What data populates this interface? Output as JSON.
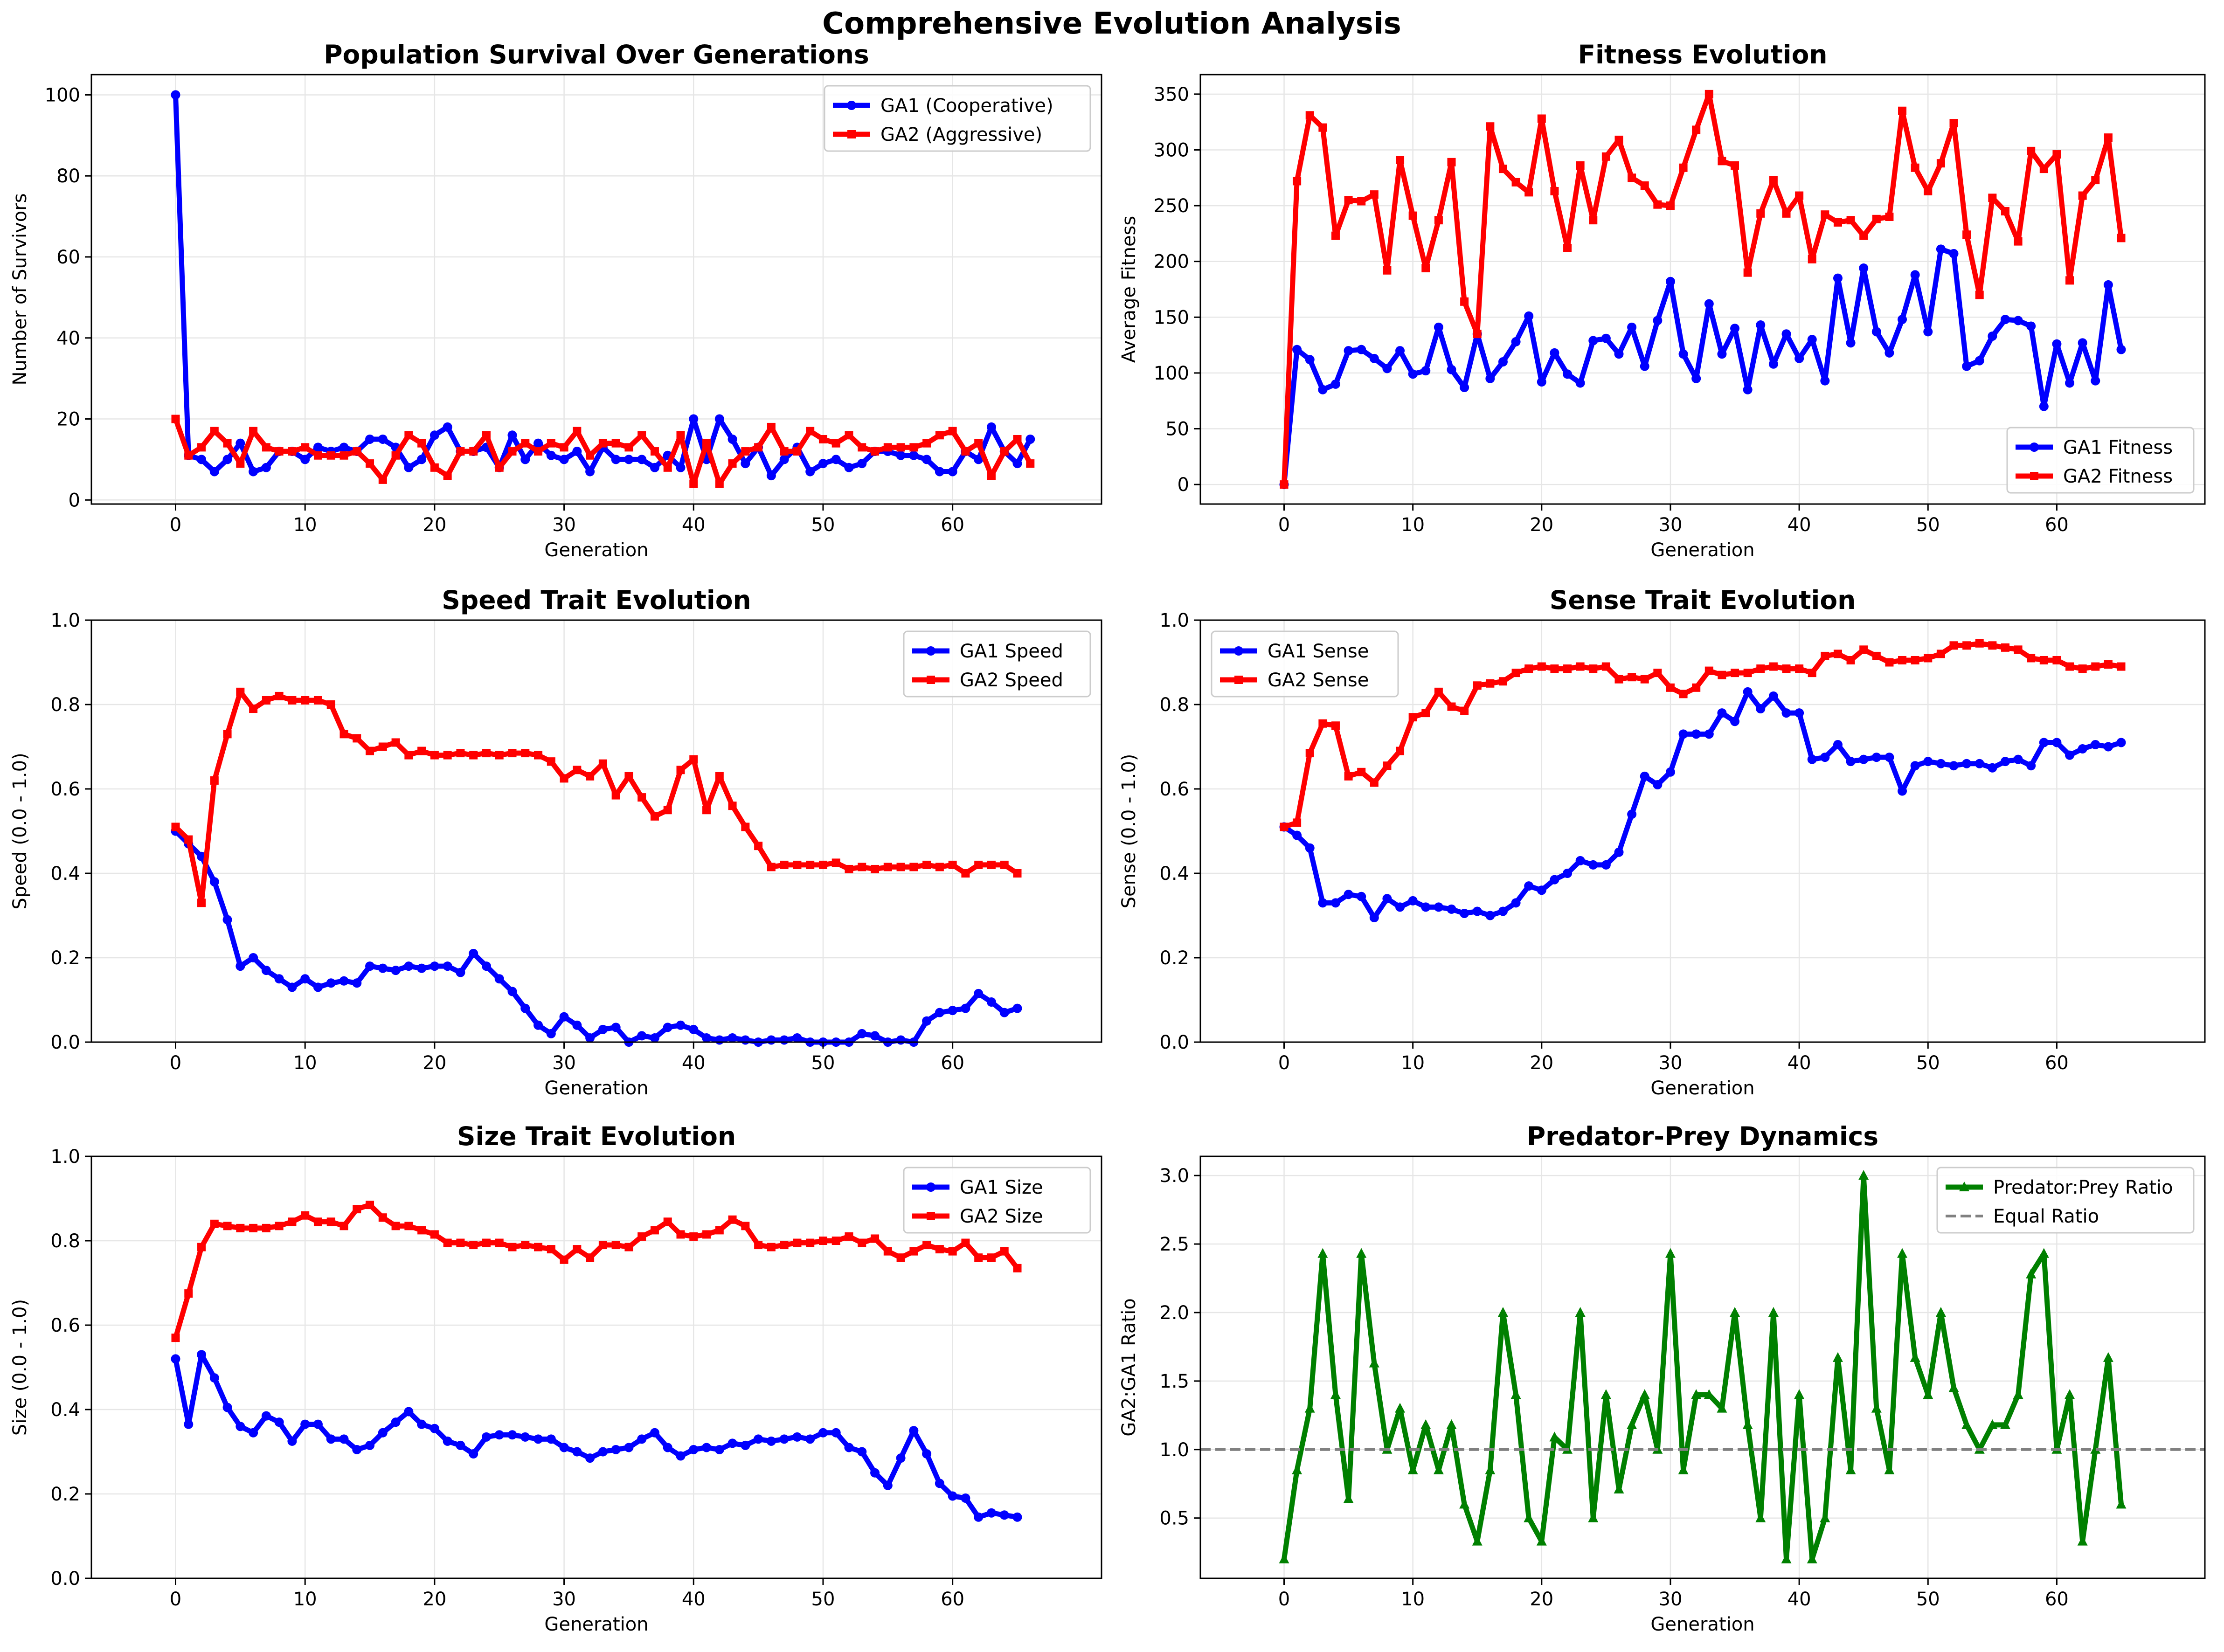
{
  "suptitle": "Comprehensive Evolution Analysis",
  "chart_data": [
    {
      "type": "line",
      "title": "Population Survival Over Generations",
      "xlabel": "Generation",
      "ylabel": "Number of Survivors",
      "xlim": [
        -6.5,
        71.5
      ],
      "ylim": [
        -1,
        105
      ],
      "xticks": [
        0,
        10,
        20,
        30,
        40,
        50,
        60
      ],
      "yticks": [
        0,
        20,
        40,
        60,
        80,
        100
      ],
      "ytick_labels": [
        "0",
        "20",
        "40",
        "60",
        "80",
        "100"
      ],
      "grid": true,
      "legend_position": "top-right",
      "series": [
        {
          "name": "GA1 (Cooperative)",
          "color": "#0000ff",
          "marker": "circle",
          "values": [
            100,
            11,
            10,
            7,
            10,
            14,
            7,
            8,
            12,
            12,
            10,
            13,
            12,
            13,
            12,
            15,
            15,
            13,
            8,
            10,
            16,
            18,
            12,
            12,
            13,
            8,
            16,
            10,
            14,
            11,
            10,
            12,
            7,
            13,
            10,
            10,
            10,
            8,
            11,
            8,
            20,
            10,
            20,
            15,
            9,
            13,
            6,
            10,
            13,
            7,
            9,
            10,
            8,
            9,
            12,
            12,
            11,
            11,
            10,
            7,
            7,
            12,
            10,
            18,
            12,
            9,
            15
          ]
        },
        {
          "name": "GA2 (Aggressive)",
          "color": "#ff0000",
          "marker": "square",
          "values": [
            20,
            11,
            13,
            17,
            14,
            9,
            17,
            13,
            12,
            12,
            13,
            11,
            11,
            11,
            12,
            9,
            5,
            11,
            16,
            14,
            8,
            6,
            12,
            12,
            16,
            8,
            12,
            14,
            12,
            14,
            13,
            17,
            11,
            14,
            14,
            13,
            16,
            12,
            8,
            16,
            4,
            14,
            4,
            9,
            12,
            13,
            18,
            12,
            12,
            17,
            15,
            14,
            16,
            13,
            12,
            13,
            13,
            13,
            14,
            16,
            17,
            12,
            14,
            6,
            12,
            15,
            9
          ]
        }
      ]
    },
    {
      "type": "line",
      "title": "Fitness Evolution",
      "xlabel": "Generation",
      "ylabel": "Average Fitness",
      "xlim": [
        -6.5,
        71.5
      ],
      "ylim": [
        -17.5,
        367.5
      ],
      "xticks": [
        0,
        10,
        20,
        30,
        40,
        50,
        60
      ],
      "yticks": [
        0,
        50,
        100,
        150,
        200,
        250,
        300,
        350
      ],
      "ytick_labels": [
        "0",
        "50",
        "100",
        "150",
        "200",
        "250",
        "300",
        "350"
      ],
      "grid": true,
      "legend_position": "bottom-right",
      "series": [
        {
          "name": "GA1 Fitness",
          "color": "#0000ff",
          "marker": "circle",
          "values": [
            0,
            121,
            112,
            85,
            90,
            120,
            121,
            113,
            104,
            120,
            99,
            102,
            141,
            103,
            87,
            135,
            95,
            110,
            128,
            151,
            92,
            118,
            99,
            91,
            129,
            131,
            117,
            141,
            106,
            147,
            182,
            117,
            95,
            162,
            117,
            140,
            85,
            143,
            108,
            135,
            113,
            130,
            93,
            185,
            127,
            194,
            137,
            118,
            148,
            188,
            137,
            211,
            207,
            106,
            111,
            133,
            148,
            147,
            142,
            70,
            126,
            91,
            127,
            93,
            179,
            121
          ]
        },
        {
          "name": "GA2 Fitness",
          "color": "#ff0000",
          "marker": "square",
          "values": [
            0,
            272,
            331,
            320,
            223,
            255,
            254,
            260,
            192,
            291,
            241,
            194,
            237,
            289,
            164,
            135,
            321,
            283,
            271,
            262,
            328,
            263,
            212,
            286,
            237,
            294,
            309,
            275,
            268,
            251,
            250,
            284,
            318,
            350,
            290,
            286,
            190,
            243,
            273,
            243,
            259,
            202,
            242,
            235,
            237,
            223,
            238,
            240,
            335,
            284,
            263,
            288,
            324,
            224,
            170,
            257,
            245,
            218,
            299,
            283,
            296,
            183,
            259,
            273,
            311,
            221
          ]
        }
      ]
    },
    {
      "type": "line",
      "title": "Speed Trait Evolution",
      "xlabel": "Generation",
      "ylabel": "Speed (0.0 - 1.0)",
      "xlim": [
        -6.5,
        71.5
      ],
      "ylim": [
        0,
        1
      ],
      "xticks": [
        0,
        10,
        20,
        30,
        40,
        50,
        60
      ],
      "yticks": [
        0,
        0.2,
        0.4,
        0.6,
        0.8,
        1.0
      ],
      "ytick_labels": [
        "0.0",
        "0.2",
        "0.4",
        "0.6",
        "0.8",
        "1.0"
      ],
      "grid": true,
      "legend_position": "top-right",
      "series": [
        {
          "name": "GA1 Speed",
          "color": "#0000ff",
          "marker": "circle",
          "values": [
            0.5,
            0.47,
            0.44,
            0.38,
            0.29,
            0.18,
            0.2,
            0.17,
            0.15,
            0.13,
            0.15,
            0.13,
            0.14,
            0.145,
            0.14,
            0.18,
            0.175,
            0.17,
            0.18,
            0.175,
            0.18,
            0.18,
            0.165,
            0.21,
            0.18,
            0.15,
            0.12,
            0.08,
            0.04,
            0.02,
            0.06,
            0.04,
            0.01,
            0.03,
            0.035,
            0.0,
            0.015,
            0.01,
            0.035,
            0.04,
            0.03,
            0.01,
            0.005,
            0.01,
            0.005,
            0.0,
            0.005,
            0.005,
            0.01,
            0.0,
            0.0,
            0.0,
            0.0,
            0.02,
            0.015,
            0.0,
            0.005,
            0.0,
            0.05,
            0.07,
            0.075,
            0.08,
            0.115,
            0.095,
            0.07,
            0.08
          ]
        },
        {
          "name": "GA2 Speed",
          "color": "#ff0000",
          "marker": "square",
          "values": [
            0.51,
            0.48,
            0.33,
            0.62,
            0.73,
            0.83,
            0.79,
            0.81,
            0.82,
            0.81,
            0.81,
            0.81,
            0.8,
            0.73,
            0.72,
            0.69,
            0.7,
            0.71,
            0.68,
            0.69,
            0.68,
            0.68,
            0.685,
            0.68,
            0.685,
            0.68,
            0.685,
            0.685,
            0.68,
            0.665,
            0.625,
            0.645,
            0.63,
            0.66,
            0.585,
            0.63,
            0.58,
            0.535,
            0.55,
            0.645,
            0.67,
            0.55,
            0.63,
            0.56,
            0.51,
            0.465,
            0.415,
            0.42,
            0.42,
            0.42,
            0.42,
            0.425,
            0.41,
            0.415,
            0.41,
            0.415,
            0.415,
            0.415,
            0.42,
            0.415,
            0.42,
            0.4,
            0.42,
            0.42,
            0.42,
            0.4
          ]
        }
      ]
    },
    {
      "type": "line",
      "title": "Sense Trait Evolution",
      "xlabel": "Generation",
      "ylabel": "Sense (0.0 - 1.0)",
      "xlim": [
        -6.5,
        71.5
      ],
      "ylim": [
        0,
        1
      ],
      "xticks": [
        0,
        10,
        20,
        30,
        40,
        50,
        60
      ],
      "yticks": [
        0,
        0.2,
        0.4,
        0.6,
        0.8,
        1.0
      ],
      "ytick_labels": [
        "0.0",
        "0.2",
        "0.4",
        "0.6",
        "0.8",
        "1.0"
      ],
      "grid": true,
      "legend_position": "top-left",
      "series": [
        {
          "name": "GA1 Sense",
          "color": "#0000ff",
          "marker": "circle",
          "values": [
            0.51,
            0.49,
            0.46,
            0.33,
            0.33,
            0.35,
            0.345,
            0.295,
            0.34,
            0.32,
            0.335,
            0.32,
            0.32,
            0.315,
            0.305,
            0.31,
            0.3,
            0.31,
            0.33,
            0.37,
            0.36,
            0.385,
            0.4,
            0.43,
            0.42,
            0.42,
            0.45,
            0.54,
            0.63,
            0.61,
            0.64,
            0.73,
            0.73,
            0.73,
            0.78,
            0.76,
            0.83,
            0.79,
            0.82,
            0.78,
            0.78,
            0.67,
            0.675,
            0.705,
            0.665,
            0.67,
            0.675,
            0.675,
            0.595,
            0.655,
            0.665,
            0.66,
            0.655,
            0.66,
            0.66,
            0.65,
            0.665,
            0.67,
            0.655,
            0.71,
            0.71,
            0.68,
            0.695,
            0.705,
            0.7,
            0.71
          ]
        },
        {
          "name": "GA2 Sense",
          "color": "#ff0000",
          "marker": "square",
          "values": [
            0.51,
            0.52,
            0.685,
            0.755,
            0.75,
            0.63,
            0.64,
            0.615,
            0.655,
            0.69,
            0.77,
            0.78,
            0.83,
            0.795,
            0.785,
            0.845,
            0.85,
            0.855,
            0.875,
            0.885,
            0.89,
            0.885,
            0.885,
            0.89,
            0.885,
            0.89,
            0.86,
            0.865,
            0.86,
            0.875,
            0.84,
            0.825,
            0.84,
            0.88,
            0.87,
            0.875,
            0.875,
            0.885,
            0.89,
            0.885,
            0.885,
            0.875,
            0.915,
            0.92,
            0.905,
            0.93,
            0.915,
            0.9,
            0.905,
            0.905,
            0.91,
            0.92,
            0.94,
            0.94,
            0.945,
            0.94,
            0.935,
            0.93,
            0.91,
            0.905,
            0.905,
            0.89,
            0.885,
            0.89,
            0.895,
            0.89
          ]
        }
      ]
    },
    {
      "type": "line",
      "title": "Size Trait Evolution",
      "xlabel": "Generation",
      "ylabel": "Size (0.0 - 1.0)",
      "xlim": [
        -6.5,
        71.5
      ],
      "ylim": [
        0,
        1
      ],
      "xticks": [
        0,
        10,
        20,
        30,
        40,
        50,
        60
      ],
      "yticks": [
        0,
        0.2,
        0.4,
        0.6,
        0.8,
        1.0
      ],
      "ytick_labels": [
        "0.0",
        "0.2",
        "0.4",
        "0.6",
        "0.8",
        "1.0"
      ],
      "grid": true,
      "legend_position": "top-right",
      "series": [
        {
          "name": "GA1 Size",
          "color": "#0000ff",
          "marker": "circle",
          "values": [
            0.52,
            0.365,
            0.53,
            0.475,
            0.405,
            0.36,
            0.345,
            0.385,
            0.37,
            0.325,
            0.365,
            0.365,
            0.33,
            0.33,
            0.305,
            0.315,
            0.345,
            0.37,
            0.395,
            0.365,
            0.355,
            0.325,
            0.315,
            0.295,
            0.335,
            0.34,
            0.34,
            0.335,
            0.33,
            0.33,
            0.31,
            0.3,
            0.285,
            0.3,
            0.305,
            0.31,
            0.33,
            0.345,
            0.31,
            0.29,
            0.305,
            0.31,
            0.305,
            0.32,
            0.315,
            0.33,
            0.325,
            0.33,
            0.335,
            0.33,
            0.345,
            0.345,
            0.31,
            0.3,
            0.25,
            0.22,
            0.285,
            0.35,
            0.295,
            0.225,
            0.195,
            0.19,
            0.145,
            0.155,
            0.15,
            0.145
          ]
        },
        {
          "name": "GA2 Size",
          "color": "#ff0000",
          "marker": "square",
          "values": [
            0.57,
            0.675,
            0.785,
            0.84,
            0.835,
            0.83,
            0.83,
            0.83,
            0.835,
            0.845,
            0.86,
            0.845,
            0.845,
            0.835,
            0.875,
            0.885,
            0.855,
            0.835,
            0.835,
            0.825,
            0.815,
            0.795,
            0.795,
            0.79,
            0.795,
            0.795,
            0.785,
            0.79,
            0.785,
            0.78,
            0.755,
            0.78,
            0.76,
            0.79,
            0.79,
            0.785,
            0.81,
            0.825,
            0.845,
            0.815,
            0.81,
            0.815,
            0.825,
            0.85,
            0.835,
            0.79,
            0.785,
            0.79,
            0.795,
            0.795,
            0.8,
            0.8,
            0.81,
            0.795,
            0.805,
            0.775,
            0.76,
            0.775,
            0.79,
            0.78,
            0.775,
            0.795,
            0.76,
            0.76,
            0.775,
            0.735
          ]
        }
      ]
    },
    {
      "type": "line",
      "title": "Predator-Prey Dynamics",
      "xlabel": "Generation",
      "ylabel": "GA2:GA1 Ratio",
      "xlim": [
        -6.5,
        71.5
      ],
      "ylim": [
        0.06,
        3.14
      ],
      "xticks": [
        0,
        10,
        20,
        30,
        40,
        50,
        60
      ],
      "yticks": [
        0.5,
        1.0,
        1.5,
        2.0,
        2.5,
        3.0
      ],
      "ytick_labels": [
        "0.5",
        "1.0",
        "1.5",
        "2.0",
        "2.5",
        "3.0"
      ],
      "grid": true,
      "legend_position": "top-right",
      "series": [
        {
          "name": "Predator:Prey Ratio",
          "color": "#008000",
          "marker": "triangle",
          "values": [
            0.2,
            0.85,
            1.3,
            2.43,
            1.4,
            0.64,
            2.43,
            1.63,
            1.0,
            1.3,
            0.85,
            1.18,
            0.85,
            1.18,
            0.6,
            0.33,
            0.85,
            2.0,
            1.4,
            0.5,
            0.33,
            1.09,
            1.0,
            2.0,
            0.5,
            1.4,
            0.71,
            1.18,
            1.4,
            1.0,
            2.43,
            0.85,
            1.4,
            1.4,
            1.3,
            2.0,
            1.18,
            0.5,
            2.0,
            0.2,
            1.4,
            0.2,
            0.5,
            1.67,
            0.85,
            3.0,
            1.3,
            0.85,
            2.43,
            1.67,
            1.4,
            2.0,
            1.45,
            1.18,
            1.0,
            1.18,
            1.18,
            1.4,
            2.28,
            2.43,
            1.0,
            1.4,
            0.33,
            1.0,
            1.67,
            0.6
          ]
        },
        {
          "name": "Equal Ratio",
          "color": "#808080",
          "style": "dashed",
          "y": 1.0
        }
      ]
    }
  ]
}
